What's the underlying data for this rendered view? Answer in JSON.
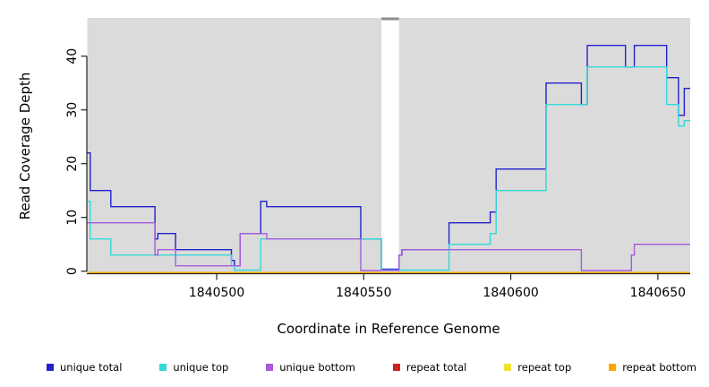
{
  "chart_data": {
    "type": "line",
    "subtype": "step",
    "title": "",
    "xlabel": "Coordinate in Reference Genome",
    "ylabel": "Read Coverage Depth",
    "xlim": [
      1840456,
      1840661
    ],
    "ylim": [
      0,
      47
    ],
    "x_ticks": [
      1840500,
      1840550,
      1840600,
      1840650
    ],
    "y_ticks": [
      0,
      10,
      20,
      30,
      40
    ],
    "grid": false,
    "legend_position": "bottom",
    "plot_background": "#DBDBDB",
    "gap_region": {
      "from": 1840556,
      "to": 1840562,
      "fill": "#FFFFFF",
      "cap_color": "#8C8C8C"
    },
    "series": [
      {
        "name": "unique total",
        "color": "#2222CC",
        "points": [
          [
            1840456,
            22
          ],
          [
            1840457,
            15
          ],
          [
            1840464,
            12
          ],
          [
            1840479,
            6
          ],
          [
            1840480,
            7
          ],
          [
            1840486,
            4
          ],
          [
            1840505,
            2
          ],
          [
            1840506,
            1
          ],
          [
            1840508,
            7
          ],
          [
            1840515,
            13
          ],
          [
            1840517,
            12
          ],
          [
            1840549,
            6
          ],
          [
            1840556,
            0
          ],
          [
            1840562,
            3
          ],
          [
            1840563,
            4
          ],
          [
            1840579,
            9
          ],
          [
            1840593,
            11
          ],
          [
            1840595,
            19
          ],
          [
            1840612,
            35
          ],
          [
            1840624,
            31
          ],
          [
            1840626,
            42
          ],
          [
            1840639,
            38
          ],
          [
            1840642,
            42
          ],
          [
            1840653,
            36
          ],
          [
            1840657,
            29
          ],
          [
            1840659,
            34
          ]
        ]
      },
      {
        "name": "unique top",
        "color": "#35D8D8",
        "points": [
          [
            1840456,
            13
          ],
          [
            1840457,
            6
          ],
          [
            1840464,
            3
          ],
          [
            1840505,
            1
          ],
          [
            1840506,
            0
          ],
          [
            1840515,
            6
          ],
          [
            1840556,
            0
          ],
          [
            1840579,
            5
          ],
          [
            1840593,
            7
          ],
          [
            1840595,
            15
          ],
          [
            1840612,
            31
          ],
          [
            1840626,
            38
          ],
          [
            1840653,
            31
          ],
          [
            1840657,
            27
          ],
          [
            1840659,
            28
          ]
        ]
      },
      {
        "name": "unique bottom",
        "color": "#A55CDC",
        "points": [
          [
            1840456,
            9
          ],
          [
            1840479,
            3
          ],
          [
            1840480,
            4
          ],
          [
            1840486,
            1
          ],
          [
            1840508,
            7
          ],
          [
            1840517,
            6
          ],
          [
            1840549,
            0
          ],
          [
            1840562,
            3
          ],
          [
            1840563,
            4
          ],
          [
            1840624,
            0
          ],
          [
            1840641,
            3
          ],
          [
            1840642,
            5
          ]
        ]
      },
      {
        "name": "repeat total",
        "color": "#CC2222",
        "points": [
          [
            1840456,
            0
          ]
        ]
      },
      {
        "name": "repeat top",
        "color": "#F0E430",
        "points": [
          [
            1840456,
            0
          ]
        ]
      },
      {
        "name": "repeat bottom",
        "color": "#FFA500",
        "points": [
          [
            1840456,
            0
          ]
        ]
      }
    ]
  }
}
